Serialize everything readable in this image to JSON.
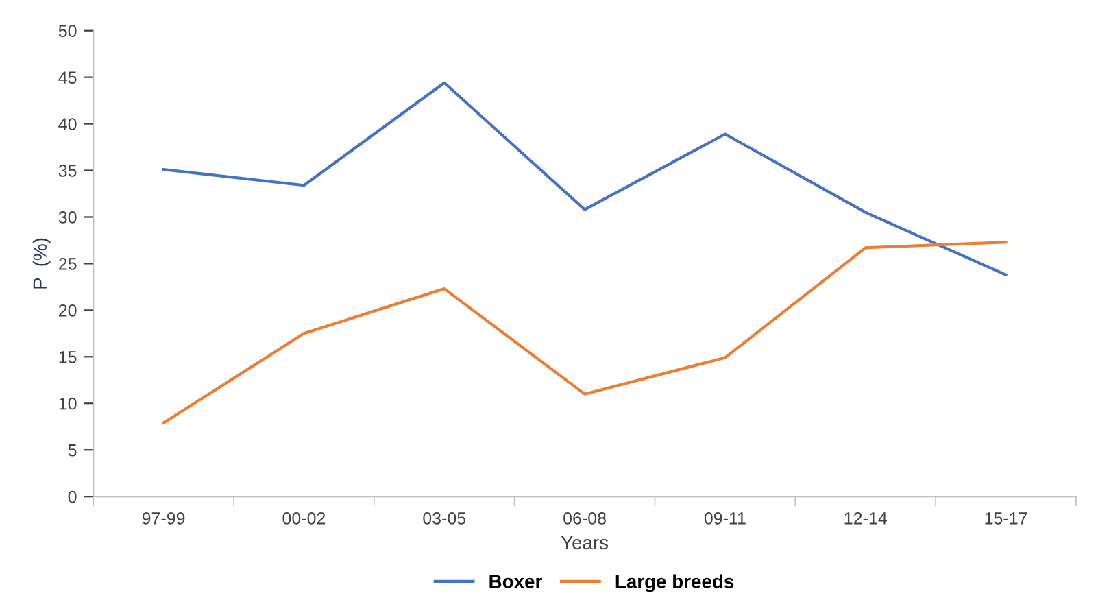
{
  "chart_data": {
    "type": "line",
    "xlabel": "Years",
    "ylabel": "P  (%)",
    "categories": [
      "97-99",
      "00-02",
      "03-05",
      "06-08",
      "09-11",
      "12-14",
      "15-17"
    ],
    "series": [
      {
        "name": "Boxer",
        "color": "#4472c4",
        "values": [
          35.1,
          33.4,
          44.4,
          30.8,
          38.9,
          30.5,
          23.8
        ]
      },
      {
        "name": "Large breeds",
        "color": "#ed7d31",
        "values": [
          7.9,
          17.5,
          22.3,
          11.0,
          14.9,
          26.7,
          27.3
        ]
      }
    ],
    "ylim": [
      0,
      50
    ],
    "yticks": [
      0,
      5,
      10,
      15,
      20,
      25,
      30,
      35,
      40,
      45,
      50
    ],
    "grid": false,
    "legend": "bottom",
    "marker": "none",
    "line_style": "solid"
  }
}
